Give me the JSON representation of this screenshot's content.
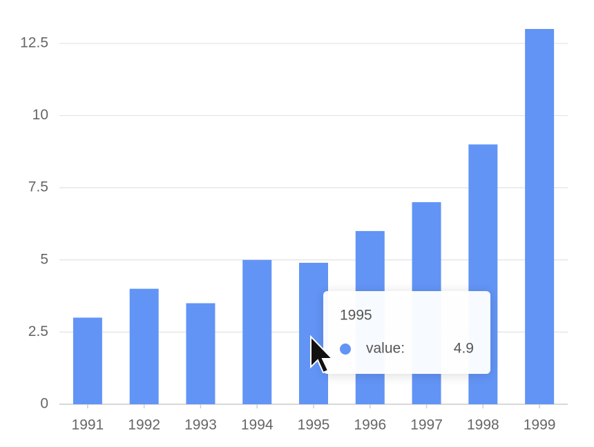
{
  "chart_data": {
    "type": "bar",
    "categories": [
      "1991",
      "1992",
      "1993",
      "1994",
      "1995",
      "1996",
      "1997",
      "1998",
      "1999"
    ],
    "values": [
      3,
      4,
      3.5,
      5,
      4.9,
      6,
      7,
      9,
      13
    ],
    "color": "#6294f6",
    "ylim": [
      0,
      13
    ],
    "yticks": [
      0,
      2.5,
      5,
      7.5,
      10,
      12.5
    ],
    "grid": true,
    "tooltip": {
      "index": 4,
      "label": "value:"
    }
  }
}
